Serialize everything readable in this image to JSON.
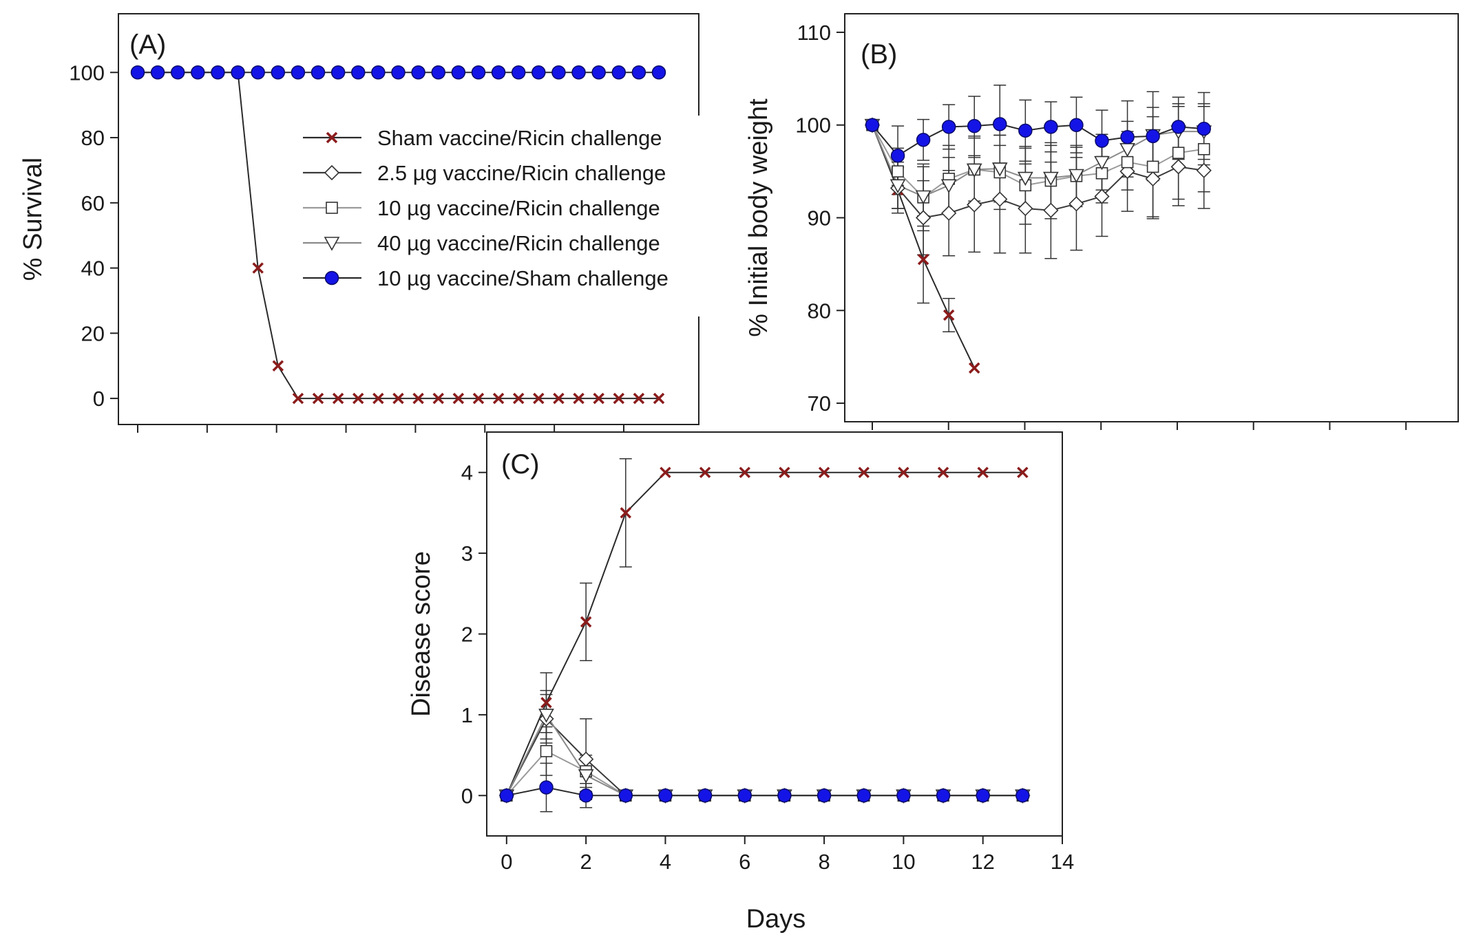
{
  "figure": {
    "shared_xlabel": "Days",
    "series_styles": [
      {
        "name": "Sham vaccine/Ricin challenge",
        "marker": "x",
        "color": "#8b1c1c",
        "line": "#2a2a2a"
      },
      {
        "name": "2.5 µg vaccine/Ricin challenge",
        "marker": "diamond",
        "color": "#ffffff",
        "line": "#3a3a3a"
      },
      {
        "name": "10 µg vaccine/Ricin challenge",
        "marker": "square",
        "color": "#ffffff",
        "line": "#9a9a9a"
      },
      {
        "name": "40 µg vaccine/Ricin challenge",
        "marker": "triangle-down",
        "color": "#ffffff",
        "line": "#8a8a8a"
      },
      {
        "name": "10 µg vaccine/Sham challenge",
        "marker": "circle",
        "color": "#1414e6",
        "line": "#2a2a2a"
      }
    ]
  },
  "chart_data": [
    {
      "type": "line",
      "panel_label": "(A)",
      "title": "",
      "xlabel": "",
      "ylabel": "% Survival",
      "ylim": [
        -8,
        118
      ],
      "xlim": [
        -0.5,
        14
      ],
      "yticks": [
        0,
        20,
        40,
        60,
        80,
        100
      ],
      "xticks": [
        0,
        2,
        4,
        6,
        8,
        10,
        12,
        14
      ],
      "show_xtick_labels": false,
      "legend": {
        "placement": "center-right",
        "entries": [
          "Sham vaccine/Ricin challenge",
          "2.5 µg vaccine/Ricin challenge",
          "10 µg vaccine/Ricin challenge",
          "40 µg vaccine/Ricin challenge",
          "10 µg vaccine/Sham challenge"
        ]
      },
      "series": [
        {
          "name": "Sham vaccine/Ricin challenge",
          "x": [
            0,
            0.5,
            1,
            1.5,
            2,
            2.5,
            3,
            3.5,
            4,
            4.5,
            5,
            5.5,
            6,
            6.5,
            7,
            7.5,
            8,
            8.5,
            9,
            9.5,
            10,
            10.5,
            11,
            11.5,
            12,
            12.5,
            13
          ],
          "y": [
            100,
            100,
            100,
            100,
            100,
            100,
            40,
            10,
            0,
            0,
            0,
            0,
            0,
            0,
            0,
            0,
            0,
            0,
            0,
            0,
            0,
            0,
            0,
            0,
            0,
            0,
            0
          ]
        },
        {
          "name": "10 µg vaccine/Sham challenge",
          "x": [
            0,
            0.5,
            1,
            1.5,
            2,
            2.5,
            3,
            3.5,
            4,
            4.5,
            5,
            5.5,
            6,
            6.5,
            7,
            7.5,
            8,
            8.5,
            9,
            9.5,
            10,
            10.5,
            11,
            11.5,
            12,
            12.5,
            13
          ],
          "y": [
            100,
            100,
            100,
            100,
            100,
            100,
            100,
            100,
            100,
            100,
            100,
            100,
            100,
            100,
            100,
            100,
            100,
            100,
            100,
            100,
            100,
            100,
            100,
            100,
            100,
            100,
            100
          ]
        }
      ]
    },
    {
      "type": "line",
      "panel_label": "(B)",
      "title": "",
      "xlabel": "",
      "ylabel": "% Initial body weight",
      "ylim": [
        68,
        112
      ],
      "xlim": [
        -0.2,
        14
      ],
      "yticks": [
        70,
        80,
        90,
        100,
        110
      ],
      "xticks": [
        0,
        2,
        4,
        6,
        8,
        10,
        12,
        14
      ],
      "show_xtick_labels": false,
      "series": [
        {
          "name": "Sham vaccine/Ricin challenge",
          "x": [
            0,
            1,
            2,
            3,
            4
          ],
          "y": [
            100,
            93,
            85.5,
            79.5,
            73.8
          ],
          "err": [
            0,
            2.5,
            4.7,
            1.8,
            0
          ]
        },
        {
          "name": "2.5 µg vaccine/Ricin challenge",
          "x": [
            0,
            1,
            2,
            3,
            4,
            5,
            6,
            7,
            8,
            9,
            10,
            11,
            12,
            13
          ],
          "y": [
            100,
            93.2,
            90,
            90.5,
            91.4,
            92,
            91,
            90.8,
            91.5,
            92.3,
            95,
            94.2,
            95.5,
            95.1
          ],
          "err": [
            0,
            2.2,
            4,
            4.6,
            5.1,
            5.8,
            4.8,
            5.2,
            5,
            4.3,
            4.3,
            4.3,
            4.2,
            4.1
          ]
        },
        {
          "name": "10 µg vaccine/Ricin challenge",
          "x": [
            0,
            1,
            2,
            3,
            4,
            5,
            6,
            7,
            8,
            9,
            10,
            11,
            12,
            13
          ],
          "y": [
            100,
            95,
            92.2,
            94.2,
            95.2,
            94.9,
            93.5,
            94,
            94.5,
            94.8,
            96,
            95.5,
            97,
            97.4
          ],
          "err": [
            0,
            2.5,
            3.6,
            3.6,
            3.6,
            4,
            4.2,
            4.1,
            3.3,
            3.2,
            3,
            5.4,
            5,
            4.6
          ]
        },
        {
          "name": "40 µg vaccine/Ricin challenge",
          "x": [
            0,
            1,
            2,
            3,
            4,
            5,
            6,
            7,
            8,
            9,
            10,
            11,
            12,
            13
          ],
          "y": [
            100,
            93.5,
            92.3,
            93.5,
            95.2,
            95.3,
            94.3,
            94.3,
            94.6,
            96,
            97.4,
            98.9,
            99.3,
            99.3
          ],
          "err": [
            0,
            2.5,
            3.2,
            3,
            3.4,
            3.6,
            3.2,
            3.5,
            3,
            3,
            3,
            3,
            3,
            3
          ]
        },
        {
          "name": "10 µg vaccine/Sham challenge",
          "x": [
            0,
            1,
            2,
            3,
            4,
            5,
            6,
            7,
            8,
            9,
            10,
            11,
            12,
            13
          ],
          "y": [
            100,
            96.7,
            98.4,
            99.8,
            99.9,
            100.1,
            99.4,
            99.8,
            100,
            98.3,
            98.7,
            98.8,
            99.8,
            99.6
          ],
          "err": [
            0,
            3.2,
            2.2,
            2.4,
            3.2,
            4.2,
            3.3,
            2.7,
            3,
            3.3,
            3.9,
            4.8,
            3.2,
            3.9
          ]
        }
      ]
    },
    {
      "type": "line",
      "panel_label": "(C)",
      "title": "",
      "xlabel": "Days",
      "ylabel": "Disease score",
      "ylim": [
        -0.5,
        4.5
      ],
      "xlim": [
        -0.5,
        14
      ],
      "yticks": [
        0,
        1,
        2,
        3,
        4
      ],
      "xticks": [
        0,
        2,
        4,
        6,
        8,
        10,
        12,
        14
      ],
      "show_xtick_labels": true,
      "series": [
        {
          "name": "Sham vaccine/Ricin challenge",
          "x": [
            0,
            1,
            2,
            3,
            4,
            5,
            6,
            7,
            8,
            9,
            10,
            11,
            12,
            13
          ],
          "y": [
            0,
            1.15,
            2.15,
            3.5,
            4,
            4,
            4,
            4,
            4,
            4,
            4,
            4,
            4,
            4
          ],
          "err": [
            0,
            0.37,
            0.48,
            0.67,
            0,
            0,
            0,
            0,
            0,
            0,
            0,
            0,
            0,
            0
          ]
        },
        {
          "name": "2.5 µg vaccine/Ricin challenge",
          "x": [
            0,
            1,
            2,
            3,
            4,
            5,
            6,
            7,
            8,
            9,
            10,
            11,
            12,
            13
          ],
          "y": [
            0,
            0.95,
            0.45,
            0,
            0,
            0,
            0,
            0,
            0,
            0,
            0,
            0,
            0,
            0
          ],
          "err": [
            0,
            0.3,
            0.5,
            0,
            0,
            0,
            0,
            0,
            0,
            0,
            0,
            0,
            0,
            0
          ]
        },
        {
          "name": "10 µg vaccine/Ricin challenge",
          "x": [
            0,
            1,
            2,
            3,
            4,
            5,
            6,
            7,
            8,
            9,
            10,
            11,
            12,
            13
          ],
          "y": [
            0,
            0.55,
            0.3,
            0,
            0,
            0,
            0,
            0,
            0,
            0,
            0,
            0,
            0,
            0
          ],
          "err": [
            0,
            0.3,
            0.2,
            0,
            0,
            0,
            0,
            0,
            0,
            0,
            0,
            0,
            0,
            0
          ]
        },
        {
          "name": "40 µg vaccine/Ricin challenge",
          "x": [
            0,
            1,
            2,
            3,
            4,
            5,
            6,
            7,
            8,
            9,
            10,
            11,
            12,
            13
          ],
          "y": [
            0,
            1.0,
            0.25,
            0,
            0,
            0,
            0,
            0,
            0,
            0,
            0,
            0,
            0,
            0
          ],
          "err": [
            0,
            0.3,
            0.2,
            0,
            0,
            0,
            0,
            0,
            0,
            0,
            0,
            0,
            0,
            0
          ]
        },
        {
          "name": "10 µg vaccine/Sham challenge",
          "x": [
            0,
            1,
            2,
            3,
            4,
            5,
            6,
            7,
            8,
            9,
            10,
            11,
            12,
            13
          ],
          "y": [
            0,
            0.1,
            0,
            0,
            0,
            0,
            0,
            0,
            0,
            0,
            0,
            0,
            0,
            0
          ],
          "err": [
            0,
            0.3,
            0.15,
            0,
            0,
            0,
            0,
            0,
            0,
            0,
            0,
            0,
            0,
            0
          ]
        }
      ]
    }
  ]
}
